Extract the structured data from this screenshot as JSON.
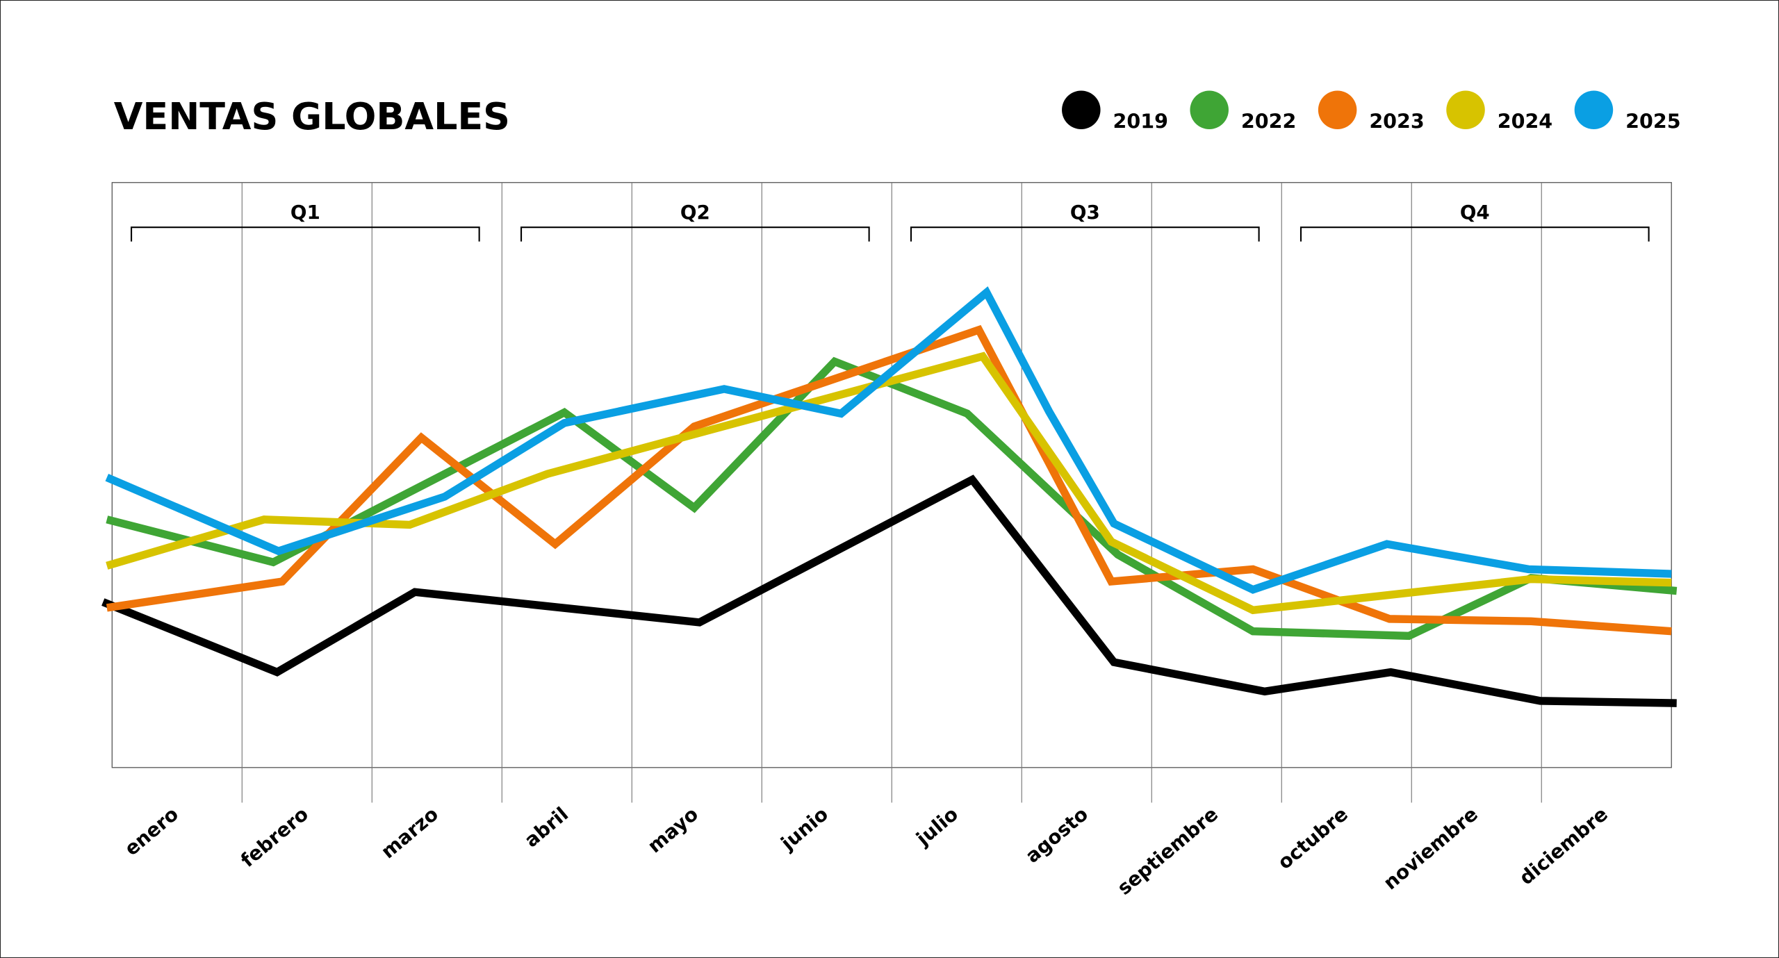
{
  "chart_data": {
    "type": "line",
    "title": "VENTAS GLOBALES",
    "xlabel": "",
    "ylabel": "",
    "categories": [
      "enero",
      "febrero",
      "marzo",
      "abril",
      "mayo",
      "junio",
      "julio",
      "agosto",
      "septiembre",
      "octubre",
      "noviembre",
      "diciembre"
    ],
    "quarters": [
      {
        "label": "Q1",
        "from": 0,
        "to": 3
      },
      {
        "label": "Q2",
        "from": 3,
        "to": 6
      },
      {
        "label": "Q3",
        "from": 6,
        "to": 9
      },
      {
        "label": "Q4",
        "from": 9,
        "to": 12
      }
    ],
    "xlim": [
      0,
      12
    ],
    "ylim": [
      0,
      100
    ],
    "grid": "vertical",
    "legend": "top-right",
    "series": [
      {
        "name": "2019",
        "color": "#000000",
        "points": [
          [
            -0.07,
            28.3
          ],
          [
            1.27,
            16.3
          ],
          [
            2.33,
            30.0
          ],
          [
            4.52,
            24.8
          ],
          [
            6.62,
            49.2
          ],
          [
            7.71,
            18.0
          ],
          [
            8.87,
            13.0
          ],
          [
            9.84,
            16.3
          ],
          [
            10.99,
            11.4
          ],
          [
            12.04,
            11.0
          ]
        ]
      },
      {
        "name": "2022",
        "color": "#3fa535",
        "points": [
          [
            -0.04,
            42.4
          ],
          [
            1.24,
            35.1
          ],
          [
            3.48,
            60.7
          ],
          [
            4.48,
            44.4
          ],
          [
            5.56,
            69.4
          ],
          [
            6.58,
            60.5
          ],
          [
            7.74,
            36.4
          ],
          [
            8.78,
            23.3
          ],
          [
            9.98,
            22.5
          ],
          [
            10.92,
            32.4
          ],
          [
            12.04,
            30.2
          ]
        ]
      },
      {
        "name": "2023",
        "color": "#ef7409",
        "points": [
          [
            -0.04,
            27.3
          ],
          [
            1.31,
            31.8
          ],
          [
            2.38,
            56.4
          ],
          [
            3.41,
            38.2
          ],
          [
            4.48,
            58.3
          ],
          [
            6.67,
            74.8
          ],
          [
            7.69,
            31.8
          ],
          [
            8.78,
            33.9
          ],
          [
            9.83,
            25.4
          ],
          [
            10.92,
            25.0
          ],
          [
            12.0,
            23.3
          ]
        ]
      },
      {
        "name": "2024",
        "color": "#d7c300",
        "points": [
          [
            -0.04,
            34.5
          ],
          [
            1.17,
            42.4
          ],
          [
            2.29,
            41.5
          ],
          [
            3.35,
            50.2
          ],
          [
            6.7,
            70.3
          ],
          [
            7.69,
            38.6
          ],
          [
            8.78,
            26.9
          ],
          [
            10.92,
            32.2
          ],
          [
            12.0,
            31.6
          ]
        ]
      },
      {
        "name": "2025",
        "color": "#0a9fe3",
        "points": [
          [
            -0.04,
            49.6
          ],
          [
            1.28,
            37.0
          ],
          [
            2.56,
            46.3
          ],
          [
            3.48,
            58.9
          ],
          [
            4.71,
            64.7
          ],
          [
            5.61,
            60.5
          ],
          [
            6.73,
            81.2
          ],
          [
            7.21,
            60.9
          ],
          [
            7.71,
            41.7
          ],
          [
            8.78,
            30.4
          ],
          [
            9.81,
            38.2
          ],
          [
            10.9,
            33.9
          ],
          [
            12.0,
            33.1
          ]
        ]
      }
    ]
  }
}
